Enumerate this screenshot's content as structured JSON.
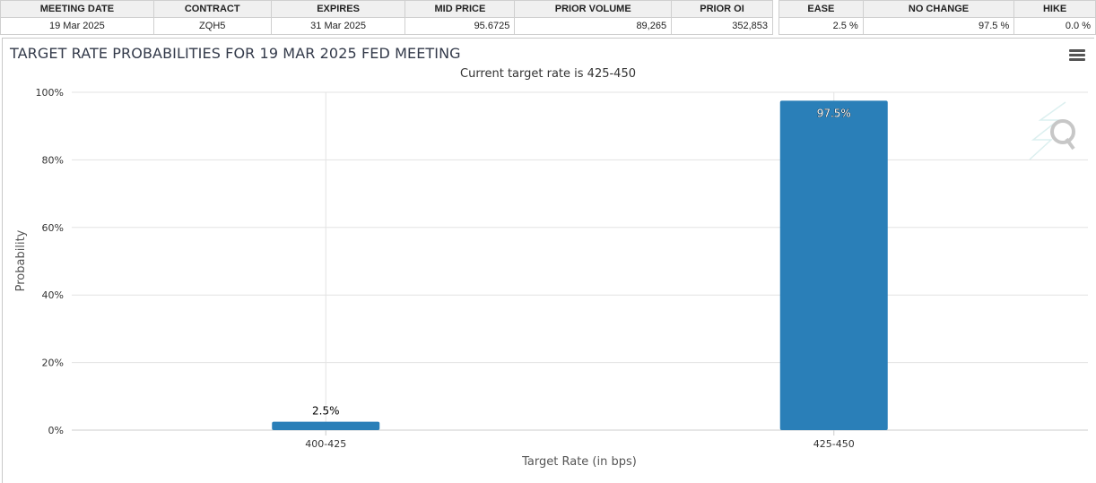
{
  "meeting_table": {
    "headers": [
      "MEETING DATE",
      "CONTRACT",
      "EXPIRES",
      "MID PRICE",
      "PRIOR VOLUME",
      "PRIOR OI"
    ],
    "row": [
      "19 Mar 2025",
      "ZQH5",
      "31 Mar 2025",
      "95.6725",
      "89,265",
      "352,853"
    ]
  },
  "probability_table": {
    "headers": [
      "EASE",
      "NO CHANGE",
      "HIKE"
    ],
    "row": [
      "2.5 %",
      "97.5 %",
      "0.0 %"
    ]
  },
  "colors": {
    "bar": "#2a7fb8",
    "grid": "#e3e3e3",
    "axis": "#cccccc"
  },
  "chart_data": {
    "type": "bar",
    "title": "TARGET RATE PROBABILITIES FOR 19 MAR 2025 FED MEETING",
    "subtitle": "Current target rate is 425-450",
    "xlabel": "Target Rate (in bps)",
    "ylabel": "Probability",
    "categories": [
      "400-425",
      "425-450"
    ],
    "values": [
      2.5,
      97.5
    ],
    "data_labels": [
      "2.5%",
      "97.5%"
    ],
    "ylim": [
      0,
      100
    ],
    "yticks": [
      0,
      20,
      40,
      60,
      80,
      100
    ],
    "ytick_labels": [
      "0%",
      "20%",
      "40%",
      "60%",
      "80%",
      "100%"
    ],
    "grid": true,
    "legend": "none"
  }
}
